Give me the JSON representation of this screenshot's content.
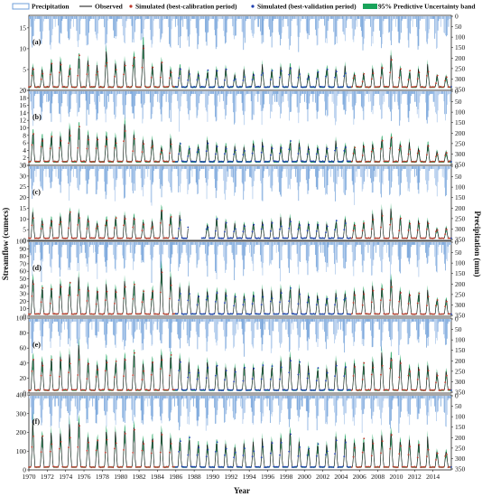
{
  "legend": {
    "items": [
      {
        "label": "Precipitation",
        "kind": "bar",
        "color": "#6f9fd8"
      },
      {
        "label": "Observed",
        "kind": "line",
        "color": "#111111"
      },
      {
        "label": "Simulated (best-calibration period)",
        "kind": "point",
        "color": "#c0392b"
      },
      {
        "label": "Simulated (best-validation period)",
        "kind": "point",
        "color": "#1f3fb0"
      },
      {
        "label": "95% Predictive Uncertainty band",
        "kind": "band",
        "color": "#19a35a"
      }
    ]
  },
  "axes": {
    "xlabel": "Year",
    "ylabel_left": "Streamflow (cumecs)",
    "ylabel_right": "Precipitation (mm)"
  },
  "colors": {
    "precip": "#6f9fd8",
    "precip_light": "#a9c6ea",
    "observed": "#111111",
    "calib": "#c0392b",
    "valid": "#1f3fb0",
    "band": "#19a35a"
  },
  "chart_data": {
    "type": "line",
    "x_range": [
      1970,
      2016
    ],
    "x_tick_labels": [
      "1970",
      "1972",
      "1974",
      "1976",
      "1978",
      "1980",
      "1982",
      "1984",
      "1986",
      "1988",
      "1990",
      "1992",
      "1994",
      "1996",
      "1998",
      "2000",
      "2002",
      "2004",
      "2006",
      "2008",
      "2010",
      "2012",
      "2014"
    ],
    "precip_axis": {
      "reversed": true,
      "ylim": [
        0,
        350
      ],
      "tick_labels": [
        "0",
        "50",
        "100",
        "150",
        "200",
        "250",
        "300",
        "350"
      ]
    },
    "panels": [
      {
        "label": "(a)",
        "ylim": [
          0,
          18
        ],
        "y_tick_labels": [
          "0",
          "5",
          "10",
          "15"
        ],
        "peaks": [
          6.5,
          5.5,
          7,
          8,
          6,
          9,
          7.5,
          6,
          11,
          7,
          8,
          10,
          14,
          6,
          7,
          5,
          6,
          5,
          4.5,
          5,
          6,
          5,
          4,
          5,
          4.5,
          6,
          5,
          6,
          7,
          5.5,
          4,
          5,
          6,
          5,
          6,
          5,
          4,
          5,
          6,
          8,
          6,
          5,
          5,
          6,
          3.5,
          4,
          4
        ],
        "base": 0.8,
        "gap": null
      },
      {
        "label": "(b)",
        "ylim": [
          0,
          20
        ],
        "y_tick_labels": [
          "0",
          "2",
          "4",
          "6",
          "8",
          "10",
          "12",
          "14",
          "16",
          "18",
          "20"
        ],
        "peaks": [
          10,
          8,
          9,
          9,
          10,
          11,
          9,
          8,
          10,
          9,
          11,
          9,
          7,
          8,
          6,
          7,
          6,
          5,
          6,
          7,
          6,
          6,
          5,
          5,
          6,
          6,
          5,
          6,
          7,
          6,
          5,
          6,
          5,
          7,
          6,
          5,
          6,
          7,
          8,
          9,
          7,
          6,
          5,
          6,
          4,
          4,
          3
        ],
        "base": 1,
        "gap": null
      },
      {
        "label": "(c)",
        "ylim": [
          0,
          35
        ],
        "y_tick_labels": [
          "0",
          "5",
          "10",
          "15",
          "20",
          "25",
          "30",
          "35"
        ],
        "peaks": [
          14,
          10,
          12,
          13,
          15,
          16,
          12,
          10,
          12,
          11,
          14,
          13,
          9,
          10,
          18,
          14,
          12,
          10,
          8,
          9,
          10,
          9,
          8,
          8,
          9,
          10,
          9,
          11,
          12,
          10,
          8,
          9,
          8,
          10,
          10,
          9,
          10,
          12,
          14,
          15,
          11,
          10,
          9,
          10,
          7,
          6,
          5
        ],
        "base": 1,
        "gap": [
          1987.4,
          1988.8
        ]
      },
      {
        "label": "(d)",
        "ylim": [
          0,
          100
        ],
        "y_tick_labels": [
          "0",
          "10",
          "20",
          "30",
          "40",
          "50",
          "60",
          "70",
          "80",
          "90",
          "100"
        ],
        "peaks": [
          48,
          40,
          42,
          45,
          50,
          55,
          44,
          38,
          45,
          40,
          55,
          48,
          36,
          40,
          68,
          52,
          44,
          40,
          32,
          35,
          38,
          34,
          30,
          30,
          32,
          36,
          33,
          40,
          44,
          36,
          30,
          32,
          30,
          36,
          36,
          32,
          36,
          42,
          48,
          52,
          40,
          36,
          32,
          36,
          26,
          24,
          20
        ],
        "base": 3,
        "gap": null
      },
      {
        "label": "(e)",
        "ylim": [
          0,
          100
        ],
        "y_tick_labels": [
          "0",
          "20",
          "40",
          "60",
          "80",
          "100"
        ],
        "peaks": [
          55,
          45,
          48,
          50,
          58,
          62,
          50,
          44,
          52,
          46,
          62,
          55,
          42,
          46,
          60,
          55,
          50,
          46,
          38,
          40,
          44,
          40,
          36,
          36,
          38,
          42,
          38,
          46,
          50,
          42,
          36,
          38,
          36,
          42,
          42,
          38,
          42,
          48,
          55,
          58,
          46,
          42,
          38,
          42,
          30,
          28,
          24
        ],
        "base": 4,
        "gap": null
      },
      {
        "label": "(f)",
        "ylim": [
          0,
          400
        ],
        "y_tick_labels": [
          "0",
          "100",
          "200",
          "300",
          "400"
        ],
        "peaks": [
          260,
          200,
          210,
          230,
          250,
          270,
          220,
          190,
          230,
          200,
          250,
          230,
          180,
          200,
          220,
          200,
          190,
          180,
          150,
          160,
          170,
          160,
          140,
          140,
          150,
          170,
          150,
          180,
          200,
          170,
          140,
          150,
          140,
          170,
          170,
          150,
          170,
          190,
          210,
          230,
          180,
          170,
          150,
          170,
          120,
          110,
          100
        ],
        "base": 15,
        "gap": null
      }
    ]
  }
}
